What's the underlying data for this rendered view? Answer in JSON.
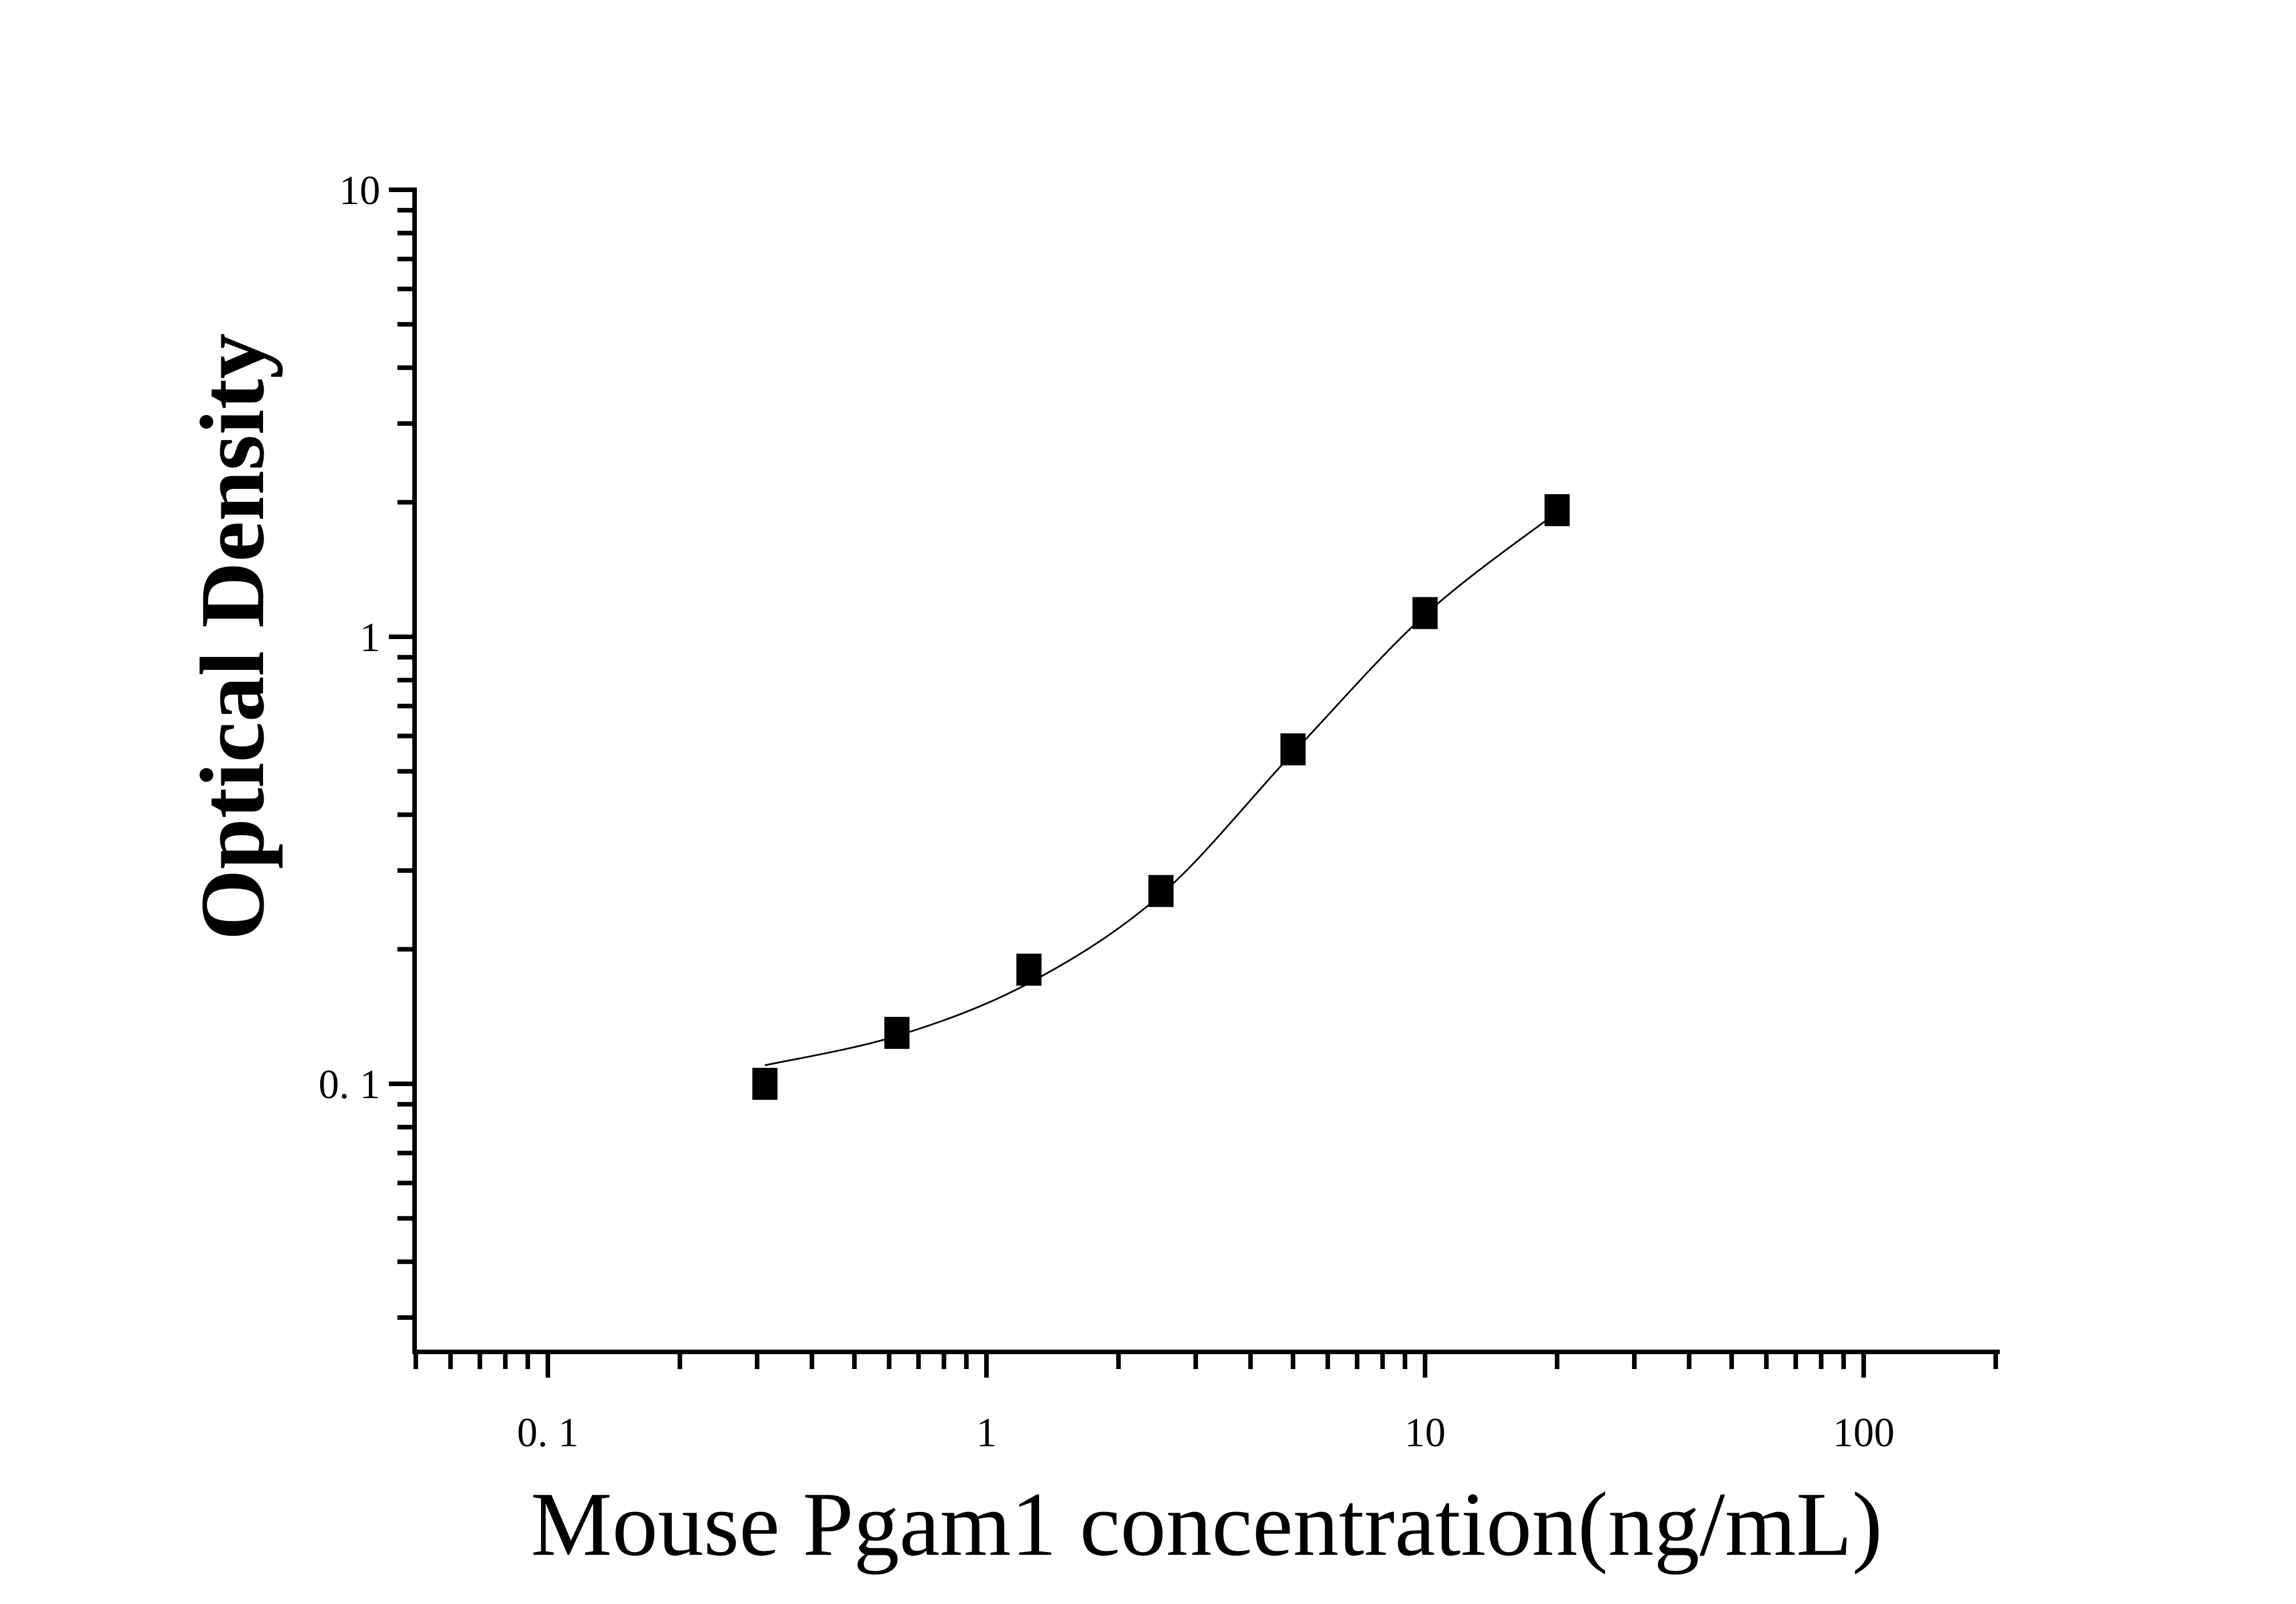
{
  "chart_data": {
    "type": "scatter",
    "title": "",
    "xlabel": "Mouse Pgam1 concentration(ng/mL)",
    "ylabel": "Optical Density",
    "x_scale": "log",
    "y_scale": "log",
    "xlim": [
      0.05,
      200
    ],
    "ylim": [
      0.025,
      10
    ],
    "x_ticks": [
      {
        "value": 0.1,
        "label": "0. 1"
      },
      {
        "value": 1,
        "label": "1"
      },
      {
        "value": 10,
        "label": "10"
      },
      {
        "value": 100,
        "label": "100"
      }
    ],
    "y_ticks": [
      {
        "value": 0.1,
        "label": "0. 1"
      },
      {
        "value": 1,
        "label": "1"
      },
      {
        "value": 10,
        "label": "10"
      }
    ],
    "grid": false,
    "series": [
      {
        "marker": "square",
        "color": "#000000",
        "x": [
          0.3125,
          0.625,
          1.25,
          2.5,
          5,
          10,
          20
        ],
        "y": [
          0.1,
          0.13,
          0.18,
          0.27,
          0.56,
          1.13,
          1.92
        ]
      }
    ],
    "fit_curve": {
      "color": "#000000",
      "x": [
        0.3125,
        0.625,
        1.25,
        2.5,
        5,
        10,
        20
      ],
      "y": [
        0.11,
        0.128,
        0.168,
        0.265,
        0.55,
        1.12,
        1.9
      ]
    }
  }
}
